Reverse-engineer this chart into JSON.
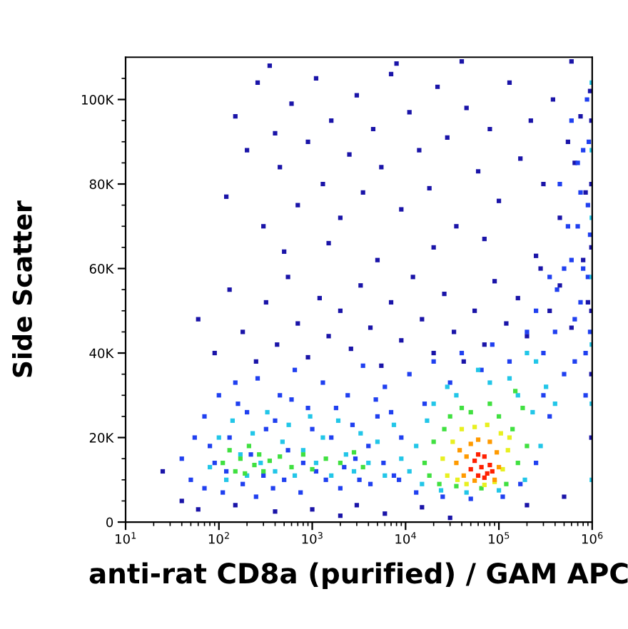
{
  "chart_data": {
    "type": "scatter",
    "xlabel": "anti-rat CD8a (purified) / GAM APC",
    "ylabel": "Side Scatter",
    "log": "x",
    "marker": "square",
    "xlim": [
      10,
      1000000
    ],
    "ylim": [
      0,
      110000
    ],
    "xticks": [
      {
        "value": 10,
        "label": "10$^{1}$"
      },
      {
        "value": 20,
        "label": null
      },
      {
        "value": 30,
        "label": null
      },
      {
        "value": 40,
        "label": null
      },
      {
        "value": 50,
        "label": null
      },
      {
        "value": 60,
        "label": null
      },
      {
        "value": 70,
        "label": null
      },
      {
        "value": 80,
        "label": null
      },
      {
        "value": 90,
        "label": null
      },
      {
        "value": 100,
        "label": "10$^{2}$"
      },
      {
        "value": 200,
        "label": null
      },
      {
        "value": 300,
        "label": null
      },
      {
        "value": 400,
        "label": null
      },
      {
        "value": 500,
        "label": null
      },
      {
        "value": 600,
        "label": null
      },
      {
        "value": 700,
        "label": null
      },
      {
        "value": 800,
        "label": null
      },
      {
        "value": 900,
        "label": null
      },
      {
        "value": 1000,
        "label": "10$^{3}$"
      },
      {
        "value": 2000,
        "label": null
      },
      {
        "value": 3000,
        "label": null
      },
      {
        "value": 4000,
        "label": null
      },
      {
        "value": 5000,
        "label": null
      },
      {
        "value": 6000,
        "label": null
      },
      {
        "value": 7000,
        "label": null
      },
      {
        "value": 8000,
        "label": null
      },
      {
        "value": 9000,
        "label": null
      },
      {
        "value": 10000,
        "label": "10$^{4}$"
      },
      {
        "value": 20000,
        "label": null
      },
      {
        "value": 30000,
        "label": null
      },
      {
        "value": 40000,
        "label": null
      },
      {
        "value": 50000,
        "label": null
      },
      {
        "value": 60000,
        "label": null
      },
      {
        "value": 70000,
        "label": null
      },
      {
        "value": 80000,
        "label": null
      },
      {
        "value": 90000,
        "label": null
      },
      {
        "value": 100000,
        "label": "10$^{5}$"
      },
      {
        "value": 200000,
        "label": null
      },
      {
        "value": 300000,
        "label": null
      },
      {
        "value": 400000,
        "label": null
      },
      {
        "value": 500000,
        "label": null
      },
      {
        "value": 600000,
        "label": null
      },
      {
        "value": 700000,
        "label": null
      },
      {
        "value": 800000,
        "label": null
      },
      {
        "value": 900000,
        "label": null
      },
      {
        "value": 1000000,
        "label": "10$^{6}$"
      }
    ],
    "yticks": [
      0,
      {
        "value": 5000,
        "label": null
      },
      {
        "value": 10000,
        "label": null
      },
      {
        "value": 15000,
        "label": null
      },
      {
        "value": 20000,
        "label": "20K"
      },
      {
        "value": 25000,
        "label": null
      },
      {
        "value": 30000,
        "label": null
      },
      {
        "value": 35000,
        "label": null
      },
      {
        "value": 40000,
        "label": "40K"
      },
      {
        "value": 45000,
        "label": null
      },
      {
        "value": 50000,
        "label": null
      },
      {
        "value": 55000,
        "label": null
      },
      {
        "value": 60000,
        "label": "60K"
      },
      {
        "value": 65000,
        "label": null
      },
      {
        "value": 70000,
        "label": null
      },
      {
        "value": 75000,
        "label": null
      },
      {
        "value": 80000,
        "label": "80K"
      },
      {
        "value": 85000,
        "label": null
      },
      {
        "value": 90000,
        "label": null
      },
      {
        "value": 95000,
        "label": null
      },
      {
        "value": 100000,
        "label": "100K"
      },
      {
        "value": 105000,
        "label": null
      }
    ],
    "series": [
      {
        "color": "#1a14a8",
        "x": [
          120,
          150,
          200,
          260,
          300,
          400,
          450,
          600,
          700,
          900,
          1100,
          1300,
          1600,
          2000,
          2500,
          3000,
          3500,
          4500,
          5500,
          7000,
          9000,
          11000,
          14000,
          18000,
          22000,
          28000,
          35000,
          45000,
          60000,
          80000,
          100000,
          130000,
          170000,
          220000,
          300000,
          380000,
          450000,
          550000,
          650000,
          750000,
          850000,
          950000,
          500,
          1500,
          5000,
          20000,
          70000,
          250000,
          350,
          40000,
          8000,
          600000,
          60,
          90,
          130,
          180,
          250,
          320,
          420,
          550,
          700,
          900,
          1200,
          1500,
          2000,
          2600,
          3300,
          4200,
          5500,
          7000,
          9000,
          12000,
          15000,
          20000,
          26000,
          33000,
          42000,
          55000,
          70000,
          90000,
          120000,
          160000,
          200000,
          280000,
          350000,
          450000,
          600000,
          800000,
          900000,
          25,
          40,
          60,
          150,
          400,
          1000,
          2000,
          3000,
          6000,
          15000,
          30000,
          200000,
          500000,
          980000,
          980000,
          980000,
          980000,
          980000,
          980000
        ],
        "values": [
          77000,
          96000,
          88000,
          104000,
          70000,
          92000,
          84000,
          99000,
          75000,
          90000,
          105000,
          80000,
          95000,
          72000,
          87000,
          101000,
          78000,
          93000,
          84000,
          106000,
          74000,
          97000,
          88000,
          79000,
          103000,
          91000,
          70000,
          98000,
          83000,
          93000,
          76000,
          104000,
          86000,
          95000,
          80000,
          100000,
          72000,
          90000,
          85000,
          96000,
          78000,
          102000,
          64000,
          66000,
          62000,
          65000,
          67000,
          63000,
          108000,
          109000,
          108500,
          109000,
          48000,
          40000,
          55000,
          45000,
          38000,
          52000,
          42000,
          58000,
          47000,
          39000,
          53000,
          44000,
          50000,
          41000,
          56000,
          46000,
          37000,
          52000,
          43000,
          58000,
          48000,
          40000,
          54000,
          45000,
          38000,
          50000,
          42000,
          57000,
          47000,
          53000,
          44000,
          60000,
          50000,
          56000,
          46000,
          62000,
          52000,
          12000,
          5000,
          3000,
          4000,
          2500,
          3000,
          1500,
          4000,
          2000,
          3500,
          1000,
          4000,
          6000,
          20000,
          35000,
          50000,
          65000,
          80000,
          95000
        ]
      },
      {
        "color": "#2040f0",
        "x": [
          40,
          50,
          55,
          70,
          70,
          90,
          100,
          110,
          130,
          150,
          180,
          200,
          250,
          260,
          320,
          380,
          450,
          550,
          650,
          750,
          900,
          1100,
          1300,
          1600,
          2000,
          2400,
          2900,
          3500,
          4200,
          5000,
          6000,
          7500,
          9000,
          11000,
          13000,
          16000,
          20000,
          25000,
          30000,
          40000,
          50000,
          65000,
          85000,
          110000,
          130000,
          170000,
          200000,
          250000,
          300000,
          350000,
          420000,
          500000,
          550000,
          650000,
          700000,
          800000,
          850000,
          900000,
          950000,
          600000,
          750000,
          400000,
          300000,
          250000,
          80,
          120,
          160,
          220,
          300,
          400,
          500,
          600,
          800,
          1000,
          1400,
          1800,
          2200,
          2700,
          3200,
          4000,
          4800,
          5800,
          7000,
          8500,
          450000,
          600000,
          700000,
          800000,
          850000,
          900000,
          950000,
          500000,
          350000,
          650000,
          750000,
          920000,
          880000
        ],
        "values": [
          15000,
          10000,
          20000,
          8000,
          25000,
          14000,
          30000,
          7000,
          20000,
          33000,
          9000,
          26000,
          6000,
          34000,
          22000,
          8000,
          30000,
          17000,
          36000,
          7000,
          27000,
          12000,
          33000,
          20000,
          8000,
          30000,
          15000,
          37000,
          9000,
          25000,
          32000,
          11000,
          20000,
          35000,
          7000,
          28000,
          38000,
          6000,
          33000,
          40000,
          5500,
          36000,
          42000,
          6000,
          38000,
          9000,
          45000,
          14000,
          40000,
          25000,
          55000,
          35000,
          70000,
          48000,
          85000,
          60000,
          30000,
          75000,
          45000,
          62000,
          52000,
          45000,
          30000,
          50000,
          18000,
          12000,
          28000,
          16000,
          11000,
          24000,
          10000,
          29000,
          14000,
          22000,
          10000,
          27000,
          13000,
          23000,
          10000,
          18000,
          29000,
          14000,
          26000,
          10000,
          80000,
          95000,
          70000,
          88000,
          40000,
          58000,
          68000,
          60000,
          58000,
          38000,
          78000,
          90000,
          100000
        ]
      },
      {
        "color": "#22c6e8",
        "x": [
          80,
          100,
          120,
          140,
          170,
          200,
          230,
          280,
          330,
          400,
          480,
          560,
          650,
          800,
          950,
          1100,
          1300,
          1600,
          1900,
          2300,
          2800,
          3300,
          4000,
          5000,
          6000,
          7500,
          9000,
          11000,
          13000,
          15000,
          17000,
          20000,
          24000,
          28000,
          35000,
          45000,
          60000,
          80000,
          100000,
          130000,
          160000,
          190000,
          230000,
          280000,
          320000,
          250000,
          400000,
          200000,
          990000,
          990000,
          990000,
          990000,
          990000,
          990000,
          990000
        ],
        "values": [
          13000,
          20000,
          10000,
          24000,
          16000,
          11000,
          21000,
          14000,
          26000,
          12000,
          19000,
          23000,
          11000,
          17000,
          25000,
          14000,
          20000,
          11000,
          24000,
          16000,
          12000,
          21000,
          14000,
          19000,
          11000,
          23000,
          15000,
          12000,
          18000,
          9000,
          24000,
          28000,
          7500,
          32000,
          30000,
          7000,
          36000,
          33000,
          7500,
          34000,
          30000,
          10000,
          26000,
          18000,
          32000,
          38000,
          28000,
          40000,
          10000,
          28000,
          42000,
          58000,
          72000,
          88000,
          104000
        ]
      },
      {
        "color": "#40e040",
        "x": [
          110,
          130,
          150,
          170,
          190,
          210,
          240,
          270,
          300,
          350,
          450,
          600,
          800,
          1000,
          1400,
          2000,
          2800,
          3500,
          16000,
          18000,
          20000,
          23000,
          26000,
          30000,
          35000,
          40000,
          50000,
          65000,
          80000,
          100000,
          120000,
          140000,
          160000,
          180000,
          200000,
          150000
        ],
        "values": [
          14000,
          17000,
          12000,
          15000,
          11500,
          18000,
          13500,
          16000,
          12000,
          14500,
          15500,
          13000,
          16000,
          12500,
          15000,
          14000,
          16500,
          13000,
          14000,
          11000,
          19000,
          9000,
          22000,
          25000,
          8500,
          27000,
          26000,
          8000,
          28000,
          25000,
          9000,
          22000,
          14000,
          27000,
          18000,
          31000
        ]
      },
      {
        "color": "#e8f020",
        "x": [
          25000,
          28000,
          32000,
          36000,
          40000,
          55000,
          75000,
          90000,
          110000,
          125000,
          105000,
          45000,
          70000,
          130000
        ],
        "values": [
          15000,
          11000,
          19000,
          10000,
          22000,
          22500,
          23000,
          9500,
          12500,
          17000,
          21000,
          9000,
          8800,
          20000
        ]
      },
      {
        "color": "#ff9a00",
        "x": [
          35000,
          38000,
          42000,
          50000,
          60000,
          80000,
          95000,
          100000,
          90000,
          55000,
          45000
        ],
        "values": [
          14000,
          17000,
          11000,
          18500,
          19500,
          19000,
          16500,
          13000,
          10000,
          9800,
          15500
        ]
      },
      {
        "color": "#ff2000",
        "x": [
          50000,
          55000,
          60000,
          65000,
          70000,
          75000,
          80000,
          60000,
          85000,
          70000
        ],
        "values": [
          12500,
          14500,
          11000,
          13000,
          15500,
          11500,
          13500,
          16000,
          12000,
          10500
        ]
      }
    ]
  }
}
